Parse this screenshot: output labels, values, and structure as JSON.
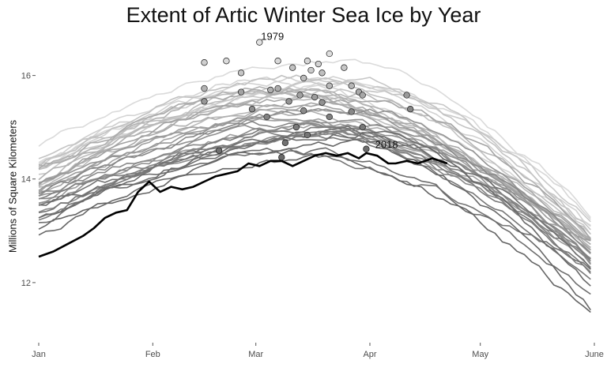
{
  "chart_data": {
    "type": "line",
    "title": "Extent of Artic Winter Sea Ice by Year",
    "xlabel": "",
    "ylabel": "Millions of Square Kilometers",
    "x_ticks": [
      "Jan",
      "Feb",
      "Mar",
      "Apr",
      "May",
      "June"
    ],
    "x_tick_days": [
      1,
      32,
      60,
      91,
      121,
      152
    ],
    "xlim": [
      1,
      152
    ],
    "y_ticks": [
      12,
      14,
      16
    ],
    "ylim": [
      10.9,
      17.0
    ],
    "grid": false,
    "legend": "none",
    "highlight_color": "#000000",
    "annotations": [
      {
        "label": "1979",
        "day": 61,
        "value": 16.64
      },
      {
        "label": "2018",
        "day": 92,
        "value": 14.55
      }
    ],
    "series_2018": {
      "name": "2018",
      "x": [
        1,
        5,
        9,
        13,
        16,
        19,
        22,
        25,
        28,
        31,
        34,
        37,
        40,
        43,
        46,
        49,
        52,
        55,
        58,
        61,
        64,
        67,
        70,
        73,
        76,
        79,
        82,
        85,
        88,
        90,
        93,
        96,
        98,
        101,
        104,
        108,
        112
      ],
      "y": [
        12.5,
        12.6,
        12.75,
        12.9,
        13.05,
        13.25,
        13.35,
        13.4,
        13.75,
        13.95,
        13.75,
        13.85,
        13.8,
        13.85,
        13.95,
        14.05,
        14.1,
        14.15,
        14.3,
        14.25,
        14.35,
        14.35,
        14.25,
        14.35,
        14.45,
        14.5,
        14.45,
        14.5,
        14.4,
        14.5,
        14.45,
        14.3,
        14.3,
        14.35,
        14.3,
        14.4,
        14.3
      ]
    },
    "annual_maxima": [
      {
        "day": 61,
        "value": 16.64
      },
      {
        "day": 80,
        "value": 16.42
      },
      {
        "day": 52,
        "value": 16.28
      },
      {
        "day": 66,
        "value": 16.28
      },
      {
        "day": 74,
        "value": 16.28
      },
      {
        "day": 77,
        "value": 16.22
      },
      {
        "day": 46,
        "value": 16.25
      },
      {
        "day": 75,
        "value": 16.1
      },
      {
        "day": 84,
        "value": 16.15
      },
      {
        "day": 56,
        "value": 16.05
      },
      {
        "day": 70,
        "value": 16.15
      },
      {
        "day": 78,
        "value": 16.05
      },
      {
        "day": 73,
        "value": 15.95
      },
      {
        "day": 80,
        "value": 15.8
      },
      {
        "day": 86,
        "value": 15.8
      },
      {
        "day": 46,
        "value": 15.75
      },
      {
        "day": 64,
        "value": 15.72
      },
      {
        "day": 66,
        "value": 15.75
      },
      {
        "day": 88,
        "value": 15.68
      },
      {
        "day": 89,
        "value": 15.62
      },
      {
        "day": 56,
        "value": 15.68
      },
      {
        "day": 72,
        "value": 15.62
      },
      {
        "day": 76,
        "value": 15.58
      },
      {
        "day": 101,
        "value": 15.62
      },
      {
        "day": 46,
        "value": 15.5
      },
      {
        "day": 69,
        "value": 15.5
      },
      {
        "day": 78,
        "value": 15.48
      },
      {
        "day": 59,
        "value": 15.35
      },
      {
        "day": 73,
        "value": 15.32
      },
      {
        "day": 86,
        "value": 15.3
      },
      {
        "day": 102,
        "value": 15.35
      },
      {
        "day": 63,
        "value": 15.2
      },
      {
        "day": 80,
        "value": 15.2
      },
      {
        "day": 71,
        "value": 15.0
      },
      {
        "day": 89,
        "value": 15.0
      },
      {
        "day": 74,
        "value": 14.85
      },
      {
        "day": 68,
        "value": 14.7
      },
      {
        "day": 50,
        "value": 14.55
      },
      {
        "day": 90,
        "value": 14.58
      },
      {
        "day": 67,
        "value": 14.42
      }
    ]
  }
}
